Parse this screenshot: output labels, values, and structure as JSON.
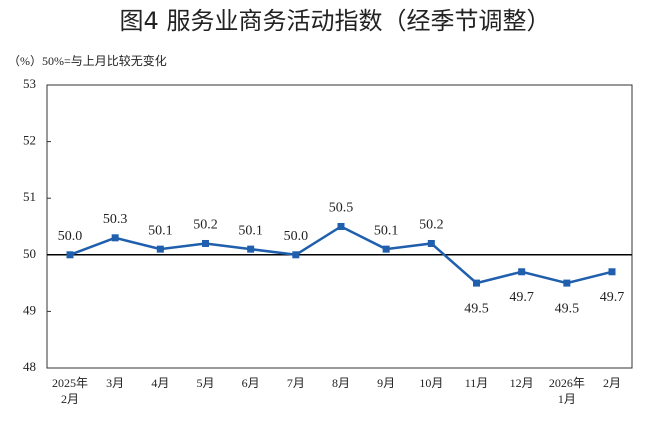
{
  "chart_data": {
    "type": "line",
    "title": "图4  服务业商务活动指数（经季节调整）",
    "subtitle": "（%）50%=与上月比较无变化",
    "categories": [
      "2025年\n2月",
      "3月",
      "4月",
      "5月",
      "6月",
      "7月",
      "8月",
      "9月",
      "10月",
      "11月",
      "12月",
      "2026年\n1月",
      "2月"
    ],
    "series": [
      {
        "color": "#1f5fad",
        "values": [
          50.0,
          50.3,
          50.1,
          50.2,
          50.1,
          50.0,
          50.5,
          50.1,
          50.2,
          49.5,
          49.7,
          49.5,
          49.7
        ],
        "value_labels": [
          "50.0",
          "50.3",
          "50.1",
          "50.2",
          "50.1",
          "50.0",
          "50.5",
          "50.1",
          "50.2",
          "49.5",
          "49.7",
          "49.5",
          "49.7"
        ]
      }
    ],
    "ylim": [
      48,
      53
    ],
    "yticks": [
      48,
      49,
      50,
      51,
      52,
      53
    ],
    "reference_line": 50
  }
}
